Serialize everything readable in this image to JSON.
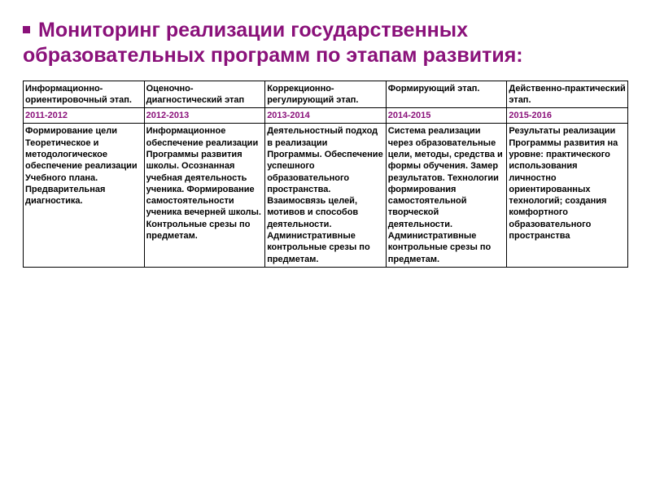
{
  "title": "Мониторинг реализации  государственных образовательных программ по этапам развития:",
  "table": {
    "columns": 5,
    "headers": [
      "Информационно-ориентировочный этап.",
      "Оценочно-диагностический этап",
      "Коррекционно-регулирующий этап.",
      "Формирующий этап.",
      "Действенно-практический этап."
    ],
    "periods": [
      "2011-2012",
      "2012-2013",
      "2013-2014",
      "2014-2015",
      "2015-2016"
    ],
    "body": [
      "Формирование цели Теоретическое и методологическое обеспечение реализации Учебного плана.\nПредварительная диагностика.",
      "Информационное обеспечение реализации Программы развития школы. Осознанная учебная деятельность ученика. Формирование самостоятельности ученика вечерней школы. Контрольные срезы по предметам.",
      "Деятельностный подход в реализации Программы. Обеспечение успешного образовательного пространства. Взаимосвязь целей, мотивов и способов деятельности. Административные контрольные срезы по предметам.",
      "Система реализации через образовательные цели, методы, средства и формы обучения. Замер результатов. Технологии формирования самостоятельной творческой деятельности. Административные контрольные срезы по предметам.",
      "Результаты реализации Программы развития на уровне: практического использования личностно ориентированных технологий; создания комфортного образовательного пространства"
    ]
  },
  "colors": {
    "accent": "#8a117a",
    "text": "#000000",
    "background": "#ffffff",
    "border": "#000000"
  }
}
